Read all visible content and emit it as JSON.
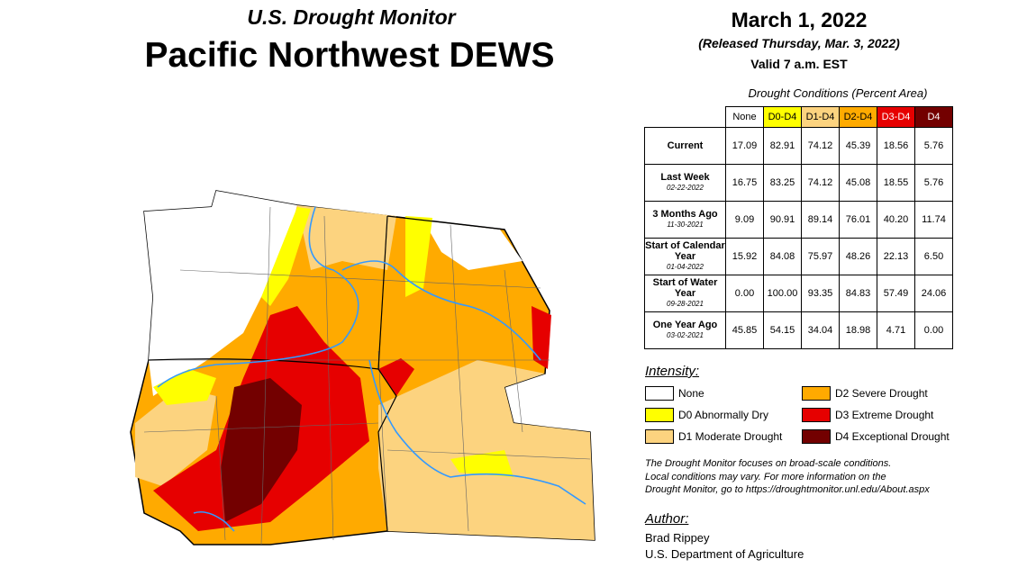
{
  "header": {
    "title": "U.S. Drought Monitor",
    "region": "Pacific Northwest DEWS"
  },
  "date": {
    "map_date": "March 1, 2022",
    "released": "(Released Thursday, Mar. 3, 2022)",
    "valid": "Valid 7 a.m. EST"
  },
  "table": {
    "caption": "Drought Conditions (Percent Area)",
    "columns": [
      "None",
      "D0-D4",
      "D1-D4",
      "D2-D4",
      "D3-D4",
      "D4"
    ],
    "column_colors": [
      "#ffffff",
      "#ffff00",
      "#fcd37f",
      "#ffaa00",
      "#e60000",
      "#730000"
    ],
    "rows": [
      {
        "label": "Current",
        "values": [
          "17.09",
          "82.91",
          "74.12",
          "45.39",
          "18.56",
          "5.76"
        ]
      },
      {
        "label": "Last Week",
        "date": "02-22-2022",
        "values": [
          "16.75",
          "83.25",
          "74.12",
          "45.08",
          "18.55",
          "5.76"
        ]
      },
      {
        "label": "3 Months Ago",
        "date": "11-30-2021",
        "values": [
          "9.09",
          "90.91",
          "89.14",
          "76.01",
          "40.20",
          "11.74"
        ]
      },
      {
        "label": "Start of Calendar Year",
        "date": "01-04-2022",
        "values": [
          "15.92",
          "84.08",
          "75.97",
          "48.26",
          "22.13",
          "6.50"
        ]
      },
      {
        "label": "Start of Water Year",
        "date": "09-28-2021",
        "values": [
          "0.00",
          "100.00",
          "93.35",
          "84.83",
          "57.49",
          "24.06"
        ]
      },
      {
        "label": "One Year Ago",
        "date": "03-02-2021",
        "values": [
          "45.85",
          "54.15",
          "34.04",
          "18.98",
          "4.71",
          "0.00"
        ]
      }
    ]
  },
  "legend": {
    "title": "Intensity:",
    "items": [
      {
        "label": "None",
        "color": "#ffffff"
      },
      {
        "label": "D0 Abnormally Dry",
        "color": "#ffff00"
      },
      {
        "label": "D1 Moderate Drought",
        "color": "#fcd37f"
      },
      {
        "label": "D2 Severe Drought",
        "color": "#ffaa00"
      },
      {
        "label": "D3 Extreme Drought",
        "color": "#e60000"
      },
      {
        "label": "D4 Exceptional Drought",
        "color": "#730000"
      }
    ]
  },
  "note": [
    "The Drought Monitor focuses on broad-scale conditions.",
    "Local conditions may vary. For more information on the",
    "Drought Monitor, go to https://droughtmonitor.unl.edu/About.aspx"
  ],
  "author": {
    "title": "Author:",
    "name": "Brad Rippey",
    "org": "U.S. Department of Agriculture"
  }
}
